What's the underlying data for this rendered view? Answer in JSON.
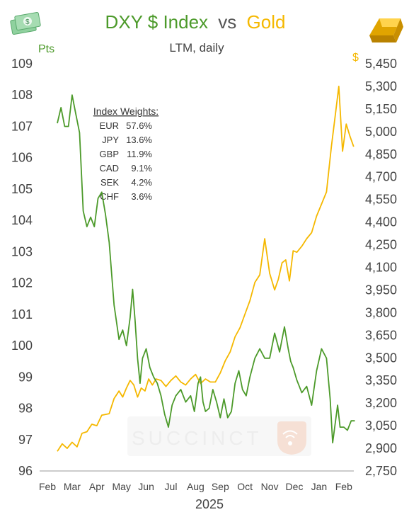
{
  "header": {
    "title_part1": "DXY $ Index",
    "title_vs": "vs",
    "title_part2": "Gold",
    "subtitle": "LTM, daily"
  },
  "colors": {
    "dxy": "#4c9a2a",
    "gold": "#f5b800",
    "text": "#444444",
    "axis": "#888888"
  },
  "icons": {
    "left": "dollar-bills-icon",
    "right": "gold-bar-icon",
    "watermark": "succinct-logo-icon"
  },
  "watermark": "SUCCINCT",
  "weights": {
    "heading": "Index Weights:",
    "rows": [
      {
        "currency": "EUR",
        "weight": "57.6%"
      },
      {
        "currency": "JPY",
        "weight": "13.6%"
      },
      {
        "currency": "GBP",
        "weight": "11.9%"
      },
      {
        "currency": "CAD",
        "weight": "9.1%"
      },
      {
        "currency": "SEK",
        "weight": "4.2%"
      },
      {
        "currency": "CHF",
        "weight": "3.6%"
      }
    ]
  },
  "chart_data": {
    "type": "line",
    "title": "DXY $ Index vs Gold",
    "subtitle": "LTM, daily",
    "xlabel": "2025",
    "x_ticks": [
      "Feb",
      "Mar",
      "Apr",
      "May",
      "Jun",
      "Jul",
      "Aug",
      "Sep",
      "Oct",
      "Nov",
      "Dec",
      "Jan",
      "Feb"
    ],
    "left_axis": {
      "unit": "Pts",
      "range": [
        96,
        109
      ],
      "ticks": [
        96,
        97,
        98,
        99,
        100,
        101,
        102,
        103,
        104,
        105,
        106,
        107,
        108,
        109
      ]
    },
    "right_axis": {
      "unit": "$",
      "range": [
        2750,
        5450
      ],
      "ticks": [
        "2,750",
        "2,900",
        "3,050",
        "3,200",
        "3,350",
        "3,500",
        "3,650",
        "3,800",
        "3,950",
        "4,100",
        "4,250",
        "4,400",
        "4,550",
        "4,700",
        "4,850",
        "5,000",
        "5,150",
        "5,300",
        "5,450"
      ]
    },
    "series": [
      {
        "name": "DXY $ Index",
        "axis": "left",
        "x": [
          0.4,
          0.55,
          0.7,
          0.85,
          1.0,
          1.15,
          1.3,
          1.45,
          1.6,
          1.75,
          1.9,
          2.05,
          2.2,
          2.35,
          2.5,
          2.7,
          2.9,
          3.05,
          3.2,
          3.35,
          3.45,
          3.55,
          3.65,
          3.75,
          3.85,
          4.0,
          4.15,
          4.3,
          4.45,
          4.6,
          4.75,
          4.9,
          5.05,
          5.2,
          5.4,
          5.6,
          5.8,
          5.95,
          6.1,
          6.2,
          6.3,
          6.4,
          6.55,
          6.7,
          6.85,
          7.0,
          7.15,
          7.3,
          7.45,
          7.6,
          7.75,
          7.9,
          8.05,
          8.2,
          8.4,
          8.6,
          8.8,
          9.0,
          9.2,
          9.4,
          9.6,
          9.75,
          9.85,
          9.95,
          10.1,
          10.3,
          10.5,
          10.7,
          10.9,
          11.1,
          11.3,
          11.45,
          11.55,
          11.65,
          11.75,
          11.85,
          12.0,
          12.15,
          12.3,
          12.45
        ],
        "values": [
          107.1,
          107.6,
          107.0,
          107.0,
          108.0,
          107.4,
          106.8,
          104.3,
          103.8,
          104.1,
          103.8,
          104.7,
          104.9,
          104.2,
          103.3,
          101.3,
          100.2,
          100.5,
          100.0,
          100.9,
          101.8,
          100.8,
          99.6,
          98.8,
          99.6,
          99.9,
          99.3,
          99.0,
          98.8,
          98.4,
          97.8,
          97.4,
          98.1,
          98.4,
          98.6,
          98.2,
          98.4,
          97.9,
          98.8,
          99.0,
          98.2,
          97.9,
          98.0,
          98.6,
          98.2,
          97.7,
          98.3,
          97.7,
          97.9,
          98.8,
          99.2,
          98.6,
          98.4,
          99.0,
          99.6,
          99.9,
          99.6,
          99.6,
          100.4,
          99.8,
          100.6,
          99.9,
          99.5,
          99.3,
          98.9,
          98.5,
          98.7,
          98.1,
          99.2,
          99.9,
          99.6,
          98.3,
          96.9,
          97.5,
          98.1,
          97.4,
          97.4,
          97.3,
          97.6,
          97.6
        ]
      },
      {
        "name": "Gold",
        "axis": "right",
        "x": [
          0.4,
          0.6,
          0.8,
          1.0,
          1.2,
          1.4,
          1.6,
          1.8,
          2.0,
          2.2,
          2.5,
          2.7,
          2.9,
          3.05,
          3.2,
          3.35,
          3.5,
          3.65,
          3.8,
          3.95,
          4.1,
          4.25,
          4.4,
          4.6,
          4.8,
          5.0,
          5.2,
          5.4,
          5.6,
          5.8,
          6.0,
          6.2,
          6.4,
          6.6,
          6.8,
          7.0,
          7.2,
          7.4,
          7.6,
          7.8,
          8.0,
          8.2,
          8.4,
          8.6,
          8.8,
          9.0,
          9.2,
          9.35,
          9.5,
          9.65,
          9.8,
          9.95,
          10.1,
          10.3,
          10.5,
          10.7,
          10.9,
          11.1,
          11.3,
          11.5,
          11.65,
          11.8,
          11.95,
          12.1,
          12.25,
          12.4
        ],
        "values": [
          2880,
          2930,
          2900,
          2940,
          2910,
          3000,
          3010,
          3060,
          3050,
          3120,
          3130,
          3230,
          3280,
          3240,
          3300,
          3350,
          3320,
          3240,
          3300,
          3280,
          3360,
          3320,
          3360,
          3350,
          3310,
          3350,
          3380,
          3340,
          3320,
          3360,
          3390,
          3330,
          3360,
          3340,
          3340,
          3400,
          3480,
          3540,
          3640,
          3700,
          3790,
          3880,
          4000,
          4050,
          4290,
          4060,
          3950,
          4020,
          4130,
          4150,
          4010,
          4210,
          4200,
          4240,
          4290,
          4330,
          4440,
          4520,
          4600,
          4900,
          5100,
          5300,
          4870,
          5050,
          4970,
          4900
        ]
      }
    ],
    "legend": "none",
    "grid": false
  }
}
